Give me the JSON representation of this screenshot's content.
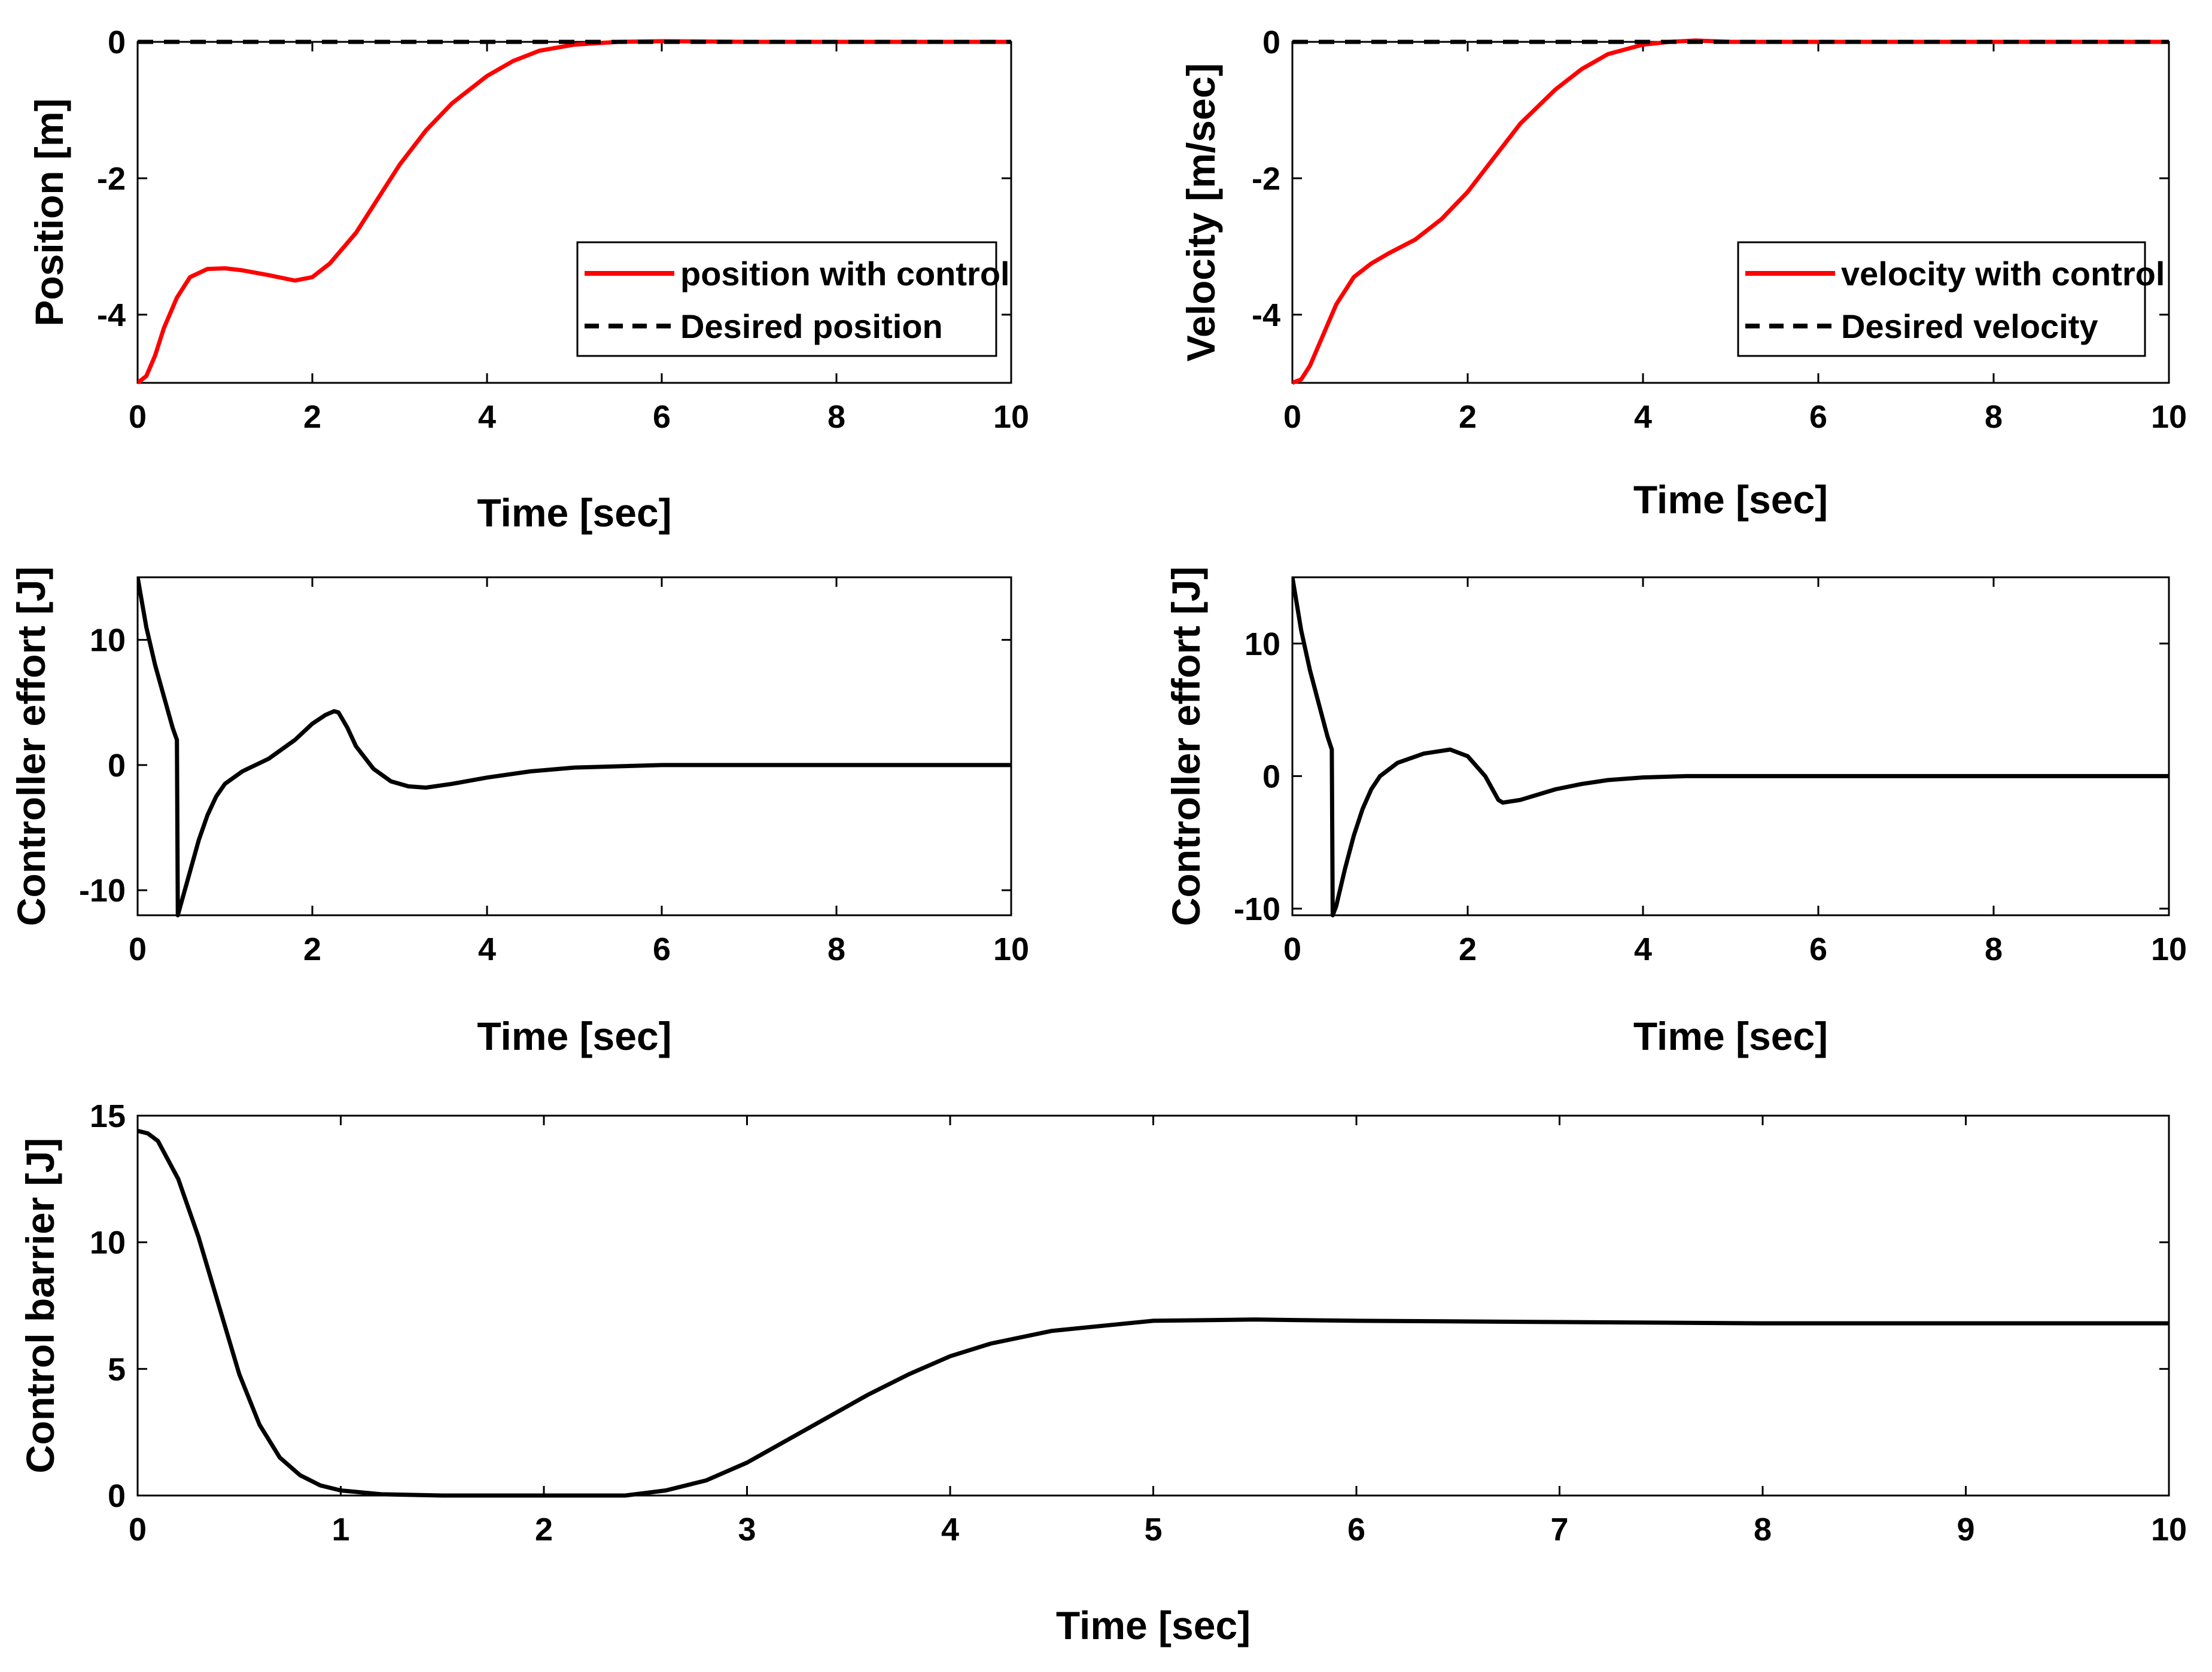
{
  "colors": {
    "control": "#ff0000",
    "desired": "#000000",
    "signal": "#000000"
  },
  "chart_data": [
    {
      "id": "position",
      "type": "line",
      "xlabel": "Time [sec]",
      "ylabel": "Position [m]",
      "xlim": [
        0,
        10
      ],
      "ylim": [
        -5,
        0
      ],
      "xticks": [
        0,
        2,
        4,
        6,
        8,
        10
      ],
      "yticks": [
        -4,
        -2,
        0
      ],
      "grid": false,
      "legend": {
        "placement": "right"
      },
      "series": [
        {
          "name": "position with control",
          "color": "#ff0000",
          "dash": false,
          "x": [
            0,
            0.1,
            0.2,
            0.3,
            0.45,
            0.6,
            0.8,
            1.0,
            1.2,
            1.5,
            1.8,
            2.0,
            2.2,
            2.5,
            2.8,
            3.0,
            3.3,
            3.6,
            4.0,
            4.3,
            4.6,
            5.0,
            5.5,
            6.0,
            7.0,
            8.0,
            9.0,
            10.0
          ],
          "y": [
            -5.0,
            -4.9,
            -4.6,
            -4.2,
            -3.75,
            -3.45,
            -3.33,
            -3.32,
            -3.35,
            -3.42,
            -3.5,
            -3.45,
            -3.25,
            -2.8,
            -2.2,
            -1.8,
            -1.3,
            -0.9,
            -0.5,
            -0.28,
            -0.13,
            -0.04,
            0.0,
            0.01,
            0.0,
            0.0,
            0.0,
            0.0
          ]
        },
        {
          "name": "Desired position",
          "color": "#000000",
          "dash": true,
          "x": [
            0,
            10
          ],
          "y": [
            0,
            0
          ]
        }
      ]
    },
    {
      "id": "velocity",
      "type": "line",
      "xlabel": "Time [sec]",
      "ylabel": "Velocity [m/sec]",
      "xlim": [
        0,
        10
      ],
      "ylim": [
        -5,
        0
      ],
      "xticks": [
        0,
        2,
        4,
        6,
        8,
        10
      ],
      "yticks": [
        -4,
        -2,
        0
      ],
      "grid": false,
      "legend": {
        "placement": "right"
      },
      "series": [
        {
          "name": "velocity with control",
          "color": "#ff0000",
          "dash": false,
          "x": [
            0,
            0.1,
            0.2,
            0.35,
            0.5,
            0.7,
            0.9,
            1.1,
            1.4,
            1.7,
            2.0,
            2.3,
            2.6,
            3.0,
            3.3,
            3.6,
            4.0,
            4.3,
            4.6,
            5.0,
            6.0,
            7.0,
            8.0,
            9.0,
            10.0
          ],
          "y": [
            -5.0,
            -4.95,
            -4.75,
            -4.3,
            -3.85,
            -3.45,
            -3.25,
            -3.1,
            -2.9,
            -2.6,
            -2.2,
            -1.7,
            -1.2,
            -0.7,
            -0.4,
            -0.18,
            -0.04,
            0.0,
            0.02,
            0.0,
            0.0,
            0.0,
            0.0,
            0.0,
            0.0
          ]
        },
        {
          "name": "Desired velocity",
          "color": "#000000",
          "dash": true,
          "x": [
            0,
            10
          ],
          "y": [
            0,
            0
          ]
        }
      ]
    },
    {
      "id": "effort-1",
      "type": "line",
      "xlabel": "Time [sec]",
      "ylabel": "Controller effort [J]",
      "xlim": [
        0,
        10
      ],
      "ylim": [
        -12,
        15
      ],
      "xticks": [
        0,
        2,
        4,
        6,
        8,
        10
      ],
      "yticks": [
        -10,
        0,
        10
      ],
      "grid": false,
      "series": [
        {
          "color": "#000000",
          "dash": false,
          "x": [
            0,
            0.1,
            0.2,
            0.3,
            0.4,
            0.45,
            0.46,
            0.5,
            0.6,
            0.7,
            0.8,
            0.9,
            1.0,
            1.2,
            1.5,
            1.8,
            2.0,
            2.15,
            2.25,
            2.3,
            2.4,
            2.5,
            2.7,
            2.9,
            3.1,
            3.3,
            3.6,
            4.0,
            4.5,
            5.0,
            6.0,
            7.0,
            8.0,
            9.0,
            10.0
          ],
          "y": [
            15.0,
            11.0,
            8.0,
            5.5,
            3.0,
            2.0,
            -12.0,
            -11.0,
            -8.5,
            -6.0,
            -4.0,
            -2.5,
            -1.5,
            -0.5,
            0.5,
            2.0,
            3.3,
            4.0,
            4.3,
            4.2,
            3.0,
            1.5,
            -0.3,
            -1.3,
            -1.7,
            -1.8,
            -1.5,
            -1.0,
            -0.5,
            -0.2,
            0.0,
            0.0,
            0.0,
            0.0,
            0.0
          ]
        }
      ]
    },
    {
      "id": "effort-2",
      "type": "line",
      "xlabel": "Time [sec]",
      "ylabel": "Controller effort [J]",
      "xlim": [
        0,
        10
      ],
      "ylim": [
        -10.5,
        15
      ],
      "xticks": [
        0,
        2,
        4,
        6,
        8,
        10
      ],
      "yticks": [
        -10,
        0,
        10
      ],
      "grid": false,
      "series": [
        {
          "color": "#000000",
          "dash": false,
          "x": [
            0,
            0.1,
            0.2,
            0.3,
            0.4,
            0.45,
            0.46,
            0.5,
            0.6,
            0.7,
            0.8,
            0.9,
            1.0,
            1.2,
            1.5,
            1.8,
            2.0,
            2.2,
            2.35,
            2.4,
            2.6,
            2.8,
            3.0,
            3.3,
            3.6,
            4.0,
            4.5,
            5.0,
            6.0,
            7.0,
            8.0,
            9.0,
            10.0
          ],
          "y": [
            15.0,
            11.0,
            8.0,
            5.5,
            3.0,
            2.0,
            -10.5,
            -9.8,
            -7.0,
            -4.5,
            -2.5,
            -1.0,
            0.0,
            1.0,
            1.7,
            2.0,
            1.5,
            0.0,
            -1.8,
            -2.0,
            -1.8,
            -1.4,
            -1.0,
            -0.6,
            -0.3,
            -0.1,
            0.0,
            0.0,
            0.0,
            0.0,
            0.0,
            0.0,
            0.0
          ]
        }
      ]
    },
    {
      "id": "barrier",
      "type": "line",
      "xlabel": "Time [sec]",
      "ylabel": "Control barrier [J]",
      "xlim": [
        0,
        10
      ],
      "ylim": [
        0,
        15
      ],
      "xticks": [
        0,
        1,
        2,
        3,
        4,
        5,
        6,
        7,
        8,
        9,
        10
      ],
      "yticks": [
        0,
        5,
        10,
        15
      ],
      "grid": false,
      "series": [
        {
          "color": "#000000",
          "dash": false,
          "x": [
            0,
            0.05,
            0.1,
            0.2,
            0.3,
            0.4,
            0.5,
            0.6,
            0.7,
            0.8,
            0.9,
            1.0,
            1.2,
            1.5,
            2.0,
            2.4,
            2.6,
            2.8,
            3.0,
            3.2,
            3.4,
            3.6,
            3.8,
            4.0,
            4.2,
            4.5,
            5.0,
            5.5,
            6.0,
            7.0,
            8.0,
            9.0,
            10.0
          ],
          "y": [
            14.4,
            14.3,
            14.0,
            12.5,
            10.2,
            7.5,
            4.8,
            2.8,
            1.5,
            0.8,
            0.4,
            0.2,
            0.05,
            0.0,
            0.0,
            0.0,
            0.2,
            0.6,
            1.3,
            2.2,
            3.1,
            4.0,
            4.8,
            5.5,
            6.0,
            6.5,
            6.9,
            6.95,
            6.9,
            6.85,
            6.8,
            6.8,
            6.8
          ]
        }
      ]
    }
  ]
}
